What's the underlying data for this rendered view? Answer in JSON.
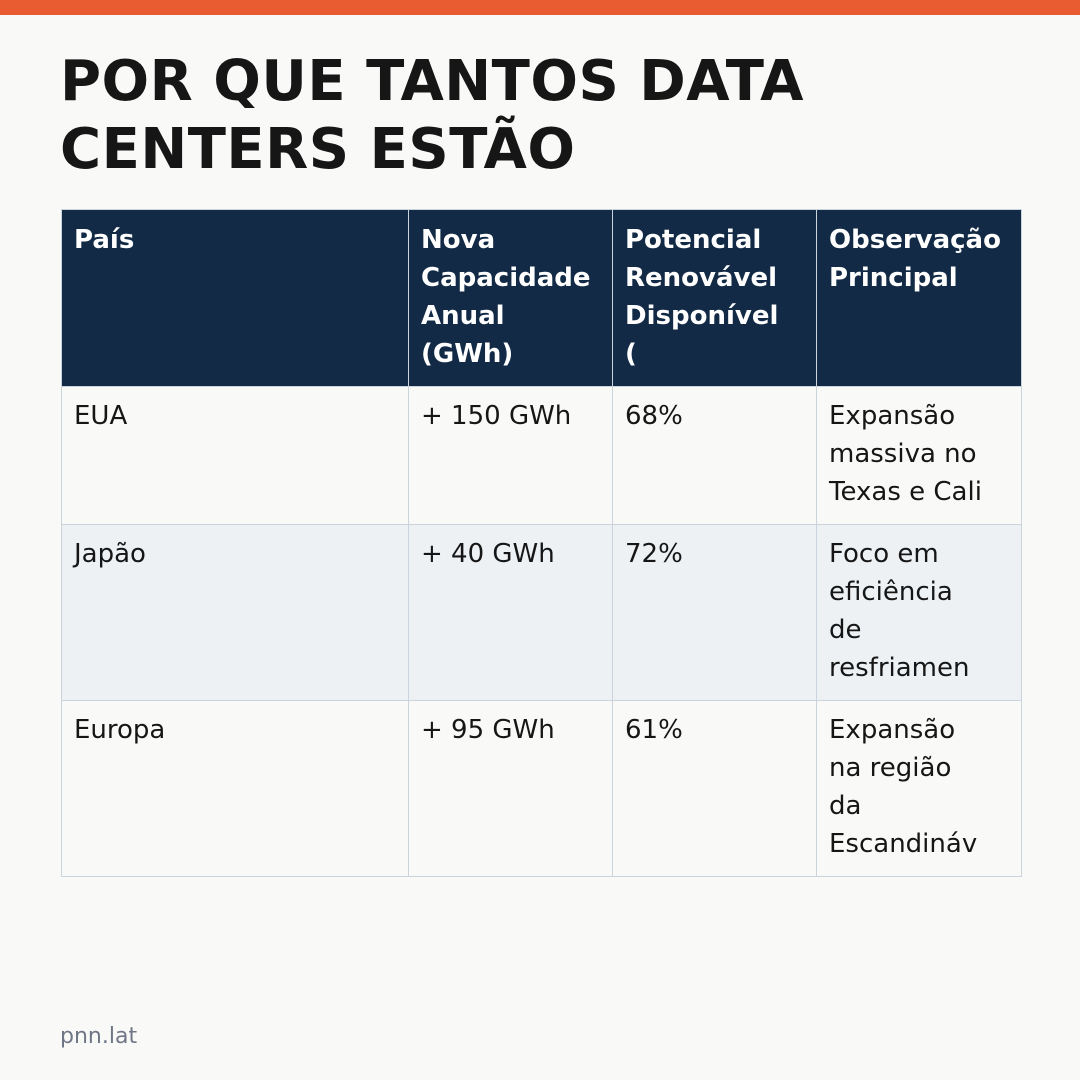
{
  "colors": {
    "accent_bar": "#e95c31",
    "header_background": "#122a45",
    "header_text": "#ffffff",
    "row_alt_background": "#edf1f4",
    "page_background": "#f9f9f7",
    "footer_text": "#6f7787"
  },
  "title": "POR QUE TANTOS DATA CENTERS ESTÃO",
  "table": {
    "headers": [
      [
        "País"
      ],
      [
        "Nova",
        "Capacidade",
        "Anual",
        "(GWh)"
      ],
      [
        "Potencial",
        "Renovável",
        "Disponível",
        "("
      ],
      [
        "Observação",
        "Principal"
      ]
    ],
    "rows": [
      {
        "country": "EUA",
        "capacity": "+ 150 GWh",
        "renewable": "68%",
        "note": [
          "Expansão",
          "massiva no",
          "Texas e Cali"
        ]
      },
      {
        "country": "Japão",
        "capacity": "+ 40 GWh",
        "renewable": "72%",
        "note": [
          "Foco em",
          "eficiência",
          "de",
          "resfriamen"
        ]
      },
      {
        "country": "Europa",
        "capacity": "+ 95 GWh",
        "renewable": "61%",
        "note": [
          "Expansão",
          "na região",
          "da",
          "Escandináv"
        ]
      }
    ]
  },
  "footer": "pnn.lat"
}
